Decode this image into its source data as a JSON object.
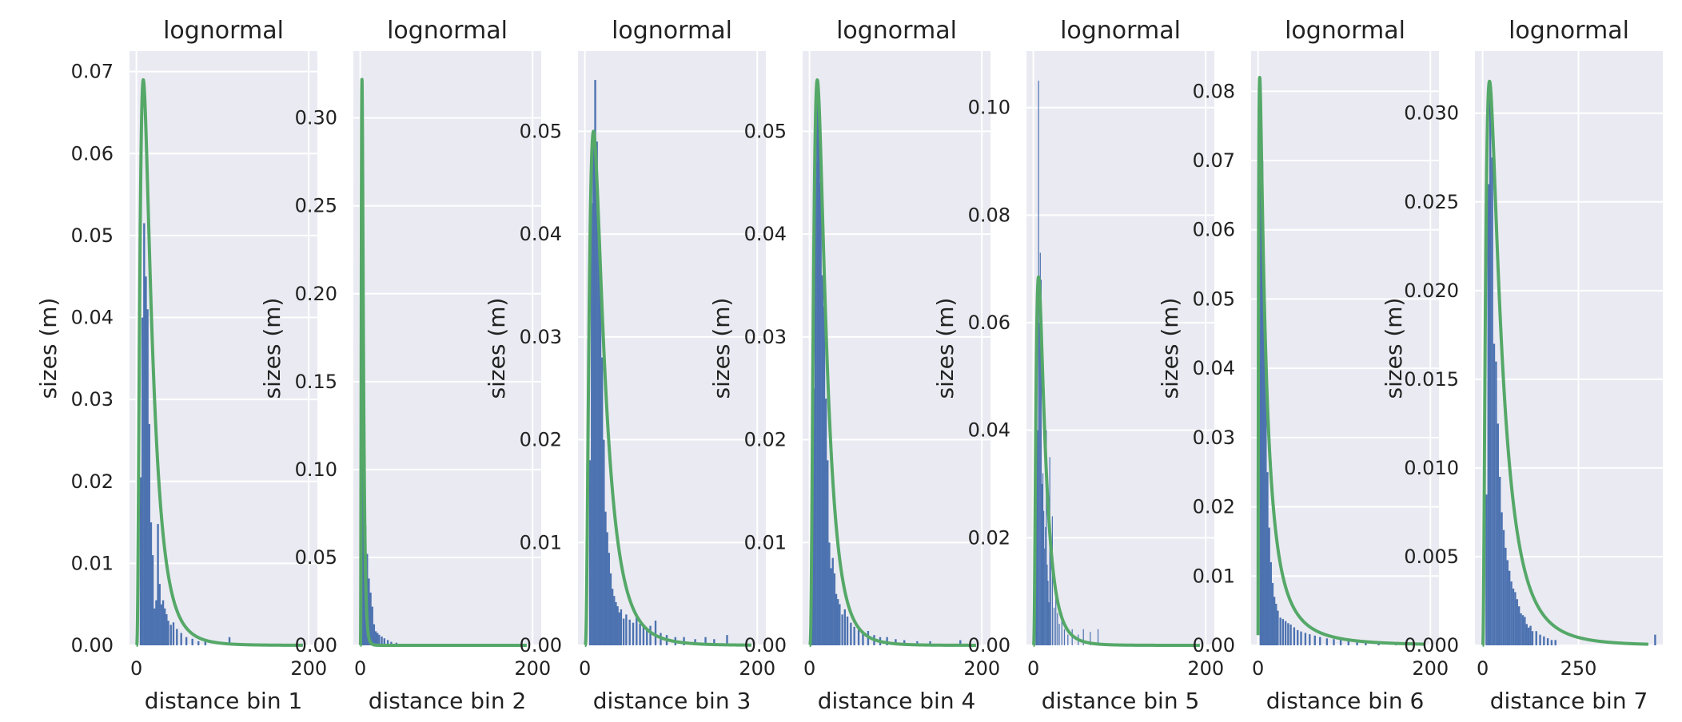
{
  "chart_data": [
    {
      "type": "bar",
      "title": "lognormal",
      "xlabel": "distance bin 1",
      "ylabel": "sizes (m)",
      "xlim": [
        -8,
        210
      ],
      "ylim": [
        0,
        0.0725
      ],
      "xticks": [
        0,
        200
      ],
      "yticks": [
        0.0,
        0.01,
        0.02,
        0.03,
        0.04,
        0.05,
        0.06,
        0.07
      ],
      "ytick_labels": [
        "0.00",
        "0.01",
        "0.02",
        "0.03",
        "0.04",
        "0.05",
        "0.06",
        "0.07"
      ],
      "grid": true,
      "bin_width": 2.2,
      "series": [
        {
          "type": "histogram",
          "x": [
            5,
            7,
            9,
            11,
            13,
            15,
            17,
            19,
            21,
            23,
            25,
            27,
            29,
            31,
            33,
            35,
            37,
            40,
            43,
            47,
            52,
            58,
            65,
            72,
            80,
            108
          ],
          "values": [
            0.0205,
            0.04,
            0.0515,
            0.045,
            0.041,
            0.027,
            0.015,
            0.011,
            0.0045,
            0.0055,
            0.0148,
            0.0075,
            0.005,
            0.0055,
            0.0045,
            0.0038,
            0.003,
            0.0025,
            0.0028,
            0.002,
            0.0015,
            0.001,
            0.0008,
            0.0005,
            0.0005,
            0.001
          ]
        },
        {
          "type": "pdf",
          "sigma": 0.75,
          "mode": 8,
          "peak": 0.069
        }
      ]
    },
    {
      "type": "bar",
      "title": "lognormal",
      "xlabel": "distance bin 2",
      "ylabel": "sizes (m)",
      "xlim": [
        -8,
        210
      ],
      "ylim": [
        0,
        0.338
      ],
      "xticks": [
        0,
        200
      ],
      "yticks": [
        0.0,
        0.05,
        0.1,
        0.15,
        0.2,
        0.25,
        0.3
      ],
      "ytick_labels": [
        "0.00",
        "0.05",
        "0.10",
        "0.15",
        "0.20",
        "0.25",
        "0.30"
      ],
      "grid": true,
      "bin_width": 2.2,
      "series": [
        {
          "type": "histogram",
          "x": [
            2,
            4,
            6,
            8,
            10,
            12,
            14,
            16,
            18,
            20,
            22,
            25,
            28,
            32,
            36,
            42
          ],
          "values": [
            0.28,
            0.12,
            0.068,
            0.052,
            0.038,
            0.03,
            0.022,
            0.012,
            0.008,
            0.007,
            0.006,
            0.005,
            0.004,
            0.003,
            0.002,
            0.0015
          ]
        },
        {
          "type": "pdf",
          "sigma": 0.55,
          "mode": 2,
          "peak": 0.322
        }
      ]
    },
    {
      "type": "bar",
      "title": "lognormal",
      "xlabel": "distance bin 3",
      "ylabel": "sizes (m)",
      "xlim": [
        -8,
        210
      ],
      "ylim": [
        0,
        0.0578
      ],
      "xticks": [
        0,
        200
      ],
      "yticks": [
        0.0,
        0.01,
        0.02,
        0.03,
        0.04,
        0.05
      ],
      "ytick_labels": [
        "0.00",
        "0.01",
        "0.02",
        "0.03",
        "0.04",
        "0.05"
      ],
      "grid": true,
      "bin_width": 2.2,
      "series": [
        {
          "type": "histogram",
          "x": [
            6,
            8,
            10,
            12,
            14,
            16,
            18,
            20,
            22,
            24,
            26,
            28,
            30,
            32,
            34,
            36,
            38,
            40,
            42,
            45,
            48,
            52,
            56,
            60,
            64,
            68,
            72,
            76,
            82,
            88,
            95,
            105,
            115,
            128,
            140,
            150,
            165
          ],
          "values": [
            0.018,
            0.043,
            0.05,
            0.055,
            0.049,
            0.042,
            0.038,
            0.028,
            0.02,
            0.013,
            0.011,
            0.009,
            0.007,
            0.0055,
            0.0048,
            0.0042,
            0.0038,
            0.0032,
            0.0035,
            0.0026,
            0.003,
            0.0025,
            0.0022,
            0.0028,
            0.0021,
            0.0018,
            0.0016,
            0.0019,
            0.0024,
            0.0012,
            0.001,
            0.0008,
            0.0008,
            0.0006,
            0.0008,
            0.0006,
            0.001
          ]
        },
        {
          "type": "pdf",
          "sigma": 0.75,
          "mode": 10,
          "peak": 0.05
        }
      ]
    },
    {
      "type": "bar",
      "title": "lognormal",
      "xlabel": "distance bin 4",
      "ylabel": "sizes (m)",
      "xlim": [
        -8,
        210
      ],
      "ylim": [
        0,
        0.0578
      ],
      "xticks": [
        0,
        200
      ],
      "yticks": [
        0.0,
        0.01,
        0.02,
        0.03,
        0.04,
        0.05
      ],
      "ytick_labels": [
        "0.00",
        "0.01",
        "0.02",
        "0.03",
        "0.04",
        "0.05"
      ],
      "grid": true,
      "bin_width": 2.2,
      "series": [
        {
          "type": "histogram",
          "x": [
            3,
            5,
            7,
            9,
            11,
            13,
            15,
            17,
            19,
            21,
            23,
            25,
            27,
            29,
            31,
            33,
            35,
            38,
            41,
            44,
            48,
            52,
            57,
            62,
            68,
            75,
            82,
            90,
            100,
            110,
            125,
            140,
            175
          ],
          "values": [
            0.008,
            0.025,
            0.047,
            0.055,
            0.052,
            0.045,
            0.036,
            0.033,
            0.024,
            0.018,
            0.01,
            0.0075,
            0.0085,
            0.007,
            0.005,
            0.0045,
            0.004,
            0.003,
            0.0035,
            0.0028,
            0.0022,
            0.0018,
            0.0015,
            0.0012,
            0.0014,
            0.001,
            0.0008,
            0.0008,
            0.0006,
            0.0005,
            0.0004,
            0.0004,
            0.0005
          ]
        },
        {
          "type": "pdf",
          "sigma": 0.7,
          "mode": 9,
          "peak": 0.055
        }
      ]
    },
    {
      "type": "bar",
      "title": "lognormal",
      "xlabel": "distance bin 5",
      "ylabel": "sizes (m)",
      "xlim": [
        -8,
        210
      ],
      "ylim": [
        0,
        0.1105
      ],
      "xticks": [
        0,
        200
      ],
      "yticks": [
        0.0,
        0.02,
        0.04,
        0.06,
        0.08,
        0.1
      ],
      "ytick_labels": [
        "0.00",
        "0.02",
        "0.04",
        "0.06",
        "0.08",
        "0.10"
      ],
      "grid": true,
      "bin_width": 1.0,
      "series": [
        {
          "type": "histogram",
          "x": [
            3,
            4,
            5,
            6,
            7,
            8,
            9,
            10,
            11,
            12,
            13,
            14,
            15,
            16,
            17,
            18,
            19,
            20,
            22,
            24,
            26,
            28,
            30,
            33,
            36,
            40,
            45,
            52,
            58,
            66,
            75
          ],
          "values": [
            0.018,
            0.05,
            0.04,
            0.105,
            0.06,
            0.073,
            0.068,
            0.03,
            0.032,
            0.025,
            0.018,
            0.022,
            0.04,
            0.015,
            0.012,
            0.008,
            0.035,
            0.018,
            0.024,
            0.007,
            0.01,
            0.006,
            0.004,
            0.006,
            0.003,
            0.002,
            0.003,
            0.002,
            0.003,
            0.0025,
            0.003
          ]
        },
        {
          "type": "pdf",
          "sigma": 0.75,
          "mode": 6,
          "peak": 0.0685
        }
      ]
    },
    {
      "type": "bar",
      "title": "lognormal",
      "xlabel": "distance bin 6",
      "ylabel": "sizes (m)",
      "xlim": [
        -8,
        210
      ],
      "ylim": [
        0,
        0.0858
      ],
      "xticks": [
        0,
        200
      ],
      "yticks": [
        0.0,
        0.01,
        0.02,
        0.03,
        0.04,
        0.05,
        0.06,
        0.07,
        0.08
      ],
      "ytick_labels": [
        "0.00",
        "0.01",
        "0.02",
        "0.03",
        "0.04",
        "0.05",
        "0.06",
        "0.07",
        "0.08"
      ],
      "grid": true,
      "bin_width": 2.2,
      "series": [
        {
          "type": "histogram",
          "x": [
            3,
            5,
            7,
            9,
            11,
            13,
            15,
            17,
            19,
            21,
            23,
            26,
            29,
            32,
            35,
            38,
            42,
            46,
            50,
            55,
            60,
            66,
            72,
            80,
            88,
            96,
            105,
            115,
            125,
            140,
            160,
            180
          ],
          "values": [
            0.08,
            0.07,
            0.05,
            0.04,
            0.025,
            0.017,
            0.012,
            0.009,
            0.007,
            0.006,
            0.005,
            0.004,
            0.0038,
            0.0035,
            0.0032,
            0.003,
            0.0026,
            0.0022,
            0.002,
            0.0018,
            0.0016,
            0.0014,
            0.0012,
            0.001,
            0.0009,
            0.0008,
            0.0006,
            0.0005,
            0.0004,
            0.0003,
            0.0002,
            0.0002
          ]
        },
        {
          "type": "pdf",
          "sigma": 1.3,
          "mode": 2,
          "peak": 0.082
        }
      ]
    },
    {
      "type": "bar",
      "title": "lognormal",
      "xlabel": "distance bin 7",
      "ylabel": "sizes (m)",
      "xlim": [
        -20,
        470
      ],
      "ylim": [
        0,
        0.0335
      ],
      "xticks": [
        0,
        250
      ],
      "yticks": [
        0.0,
        0.005,
        0.01,
        0.015,
        0.02,
        0.025,
        0.03
      ],
      "ytick_labels": [
        "0.000",
        "0.005",
        "0.010",
        "0.015",
        "0.020",
        "0.025",
        "0.030"
      ],
      "grid": true,
      "bin_width": 5.0,
      "series": [
        {
          "type": "histogram",
          "x": [
            10,
            15,
            20,
            25,
            30,
            35,
            40,
            45,
            50,
            55,
            60,
            65,
            70,
            75,
            80,
            85,
            90,
            95,
            100,
            105,
            110,
            115,
            120,
            125,
            130,
            140,
            150,
            160,
            170,
            180,
            190,
            450
          ],
          "values": [
            0.0085,
            0.026,
            0.031,
            0.0275,
            0.017,
            0.016,
            0.0125,
            0.0095,
            0.0075,
            0.0065,
            0.0055,
            0.0048,
            0.0042,
            0.0036,
            0.0032,
            0.003,
            0.0026,
            0.0022,
            0.0018,
            0.0017,
            0.0016,
            0.0012,
            0.001,
            0.0011,
            0.0008,
            0.0008,
            0.0006,
            0.0005,
            0.0004,
            0.0003,
            0.0003,
            0.0006
          ]
        },
        {
          "type": "pdf",
          "sigma": 0.9,
          "mode": 18,
          "peak": 0.0318
        }
      ]
    }
  ],
  "colors": {
    "bar": "#4c72b0",
    "line": "#55a868",
    "panel_bg": "#eaeaf2",
    "grid": "#ffffff",
    "text": "#222222"
  }
}
